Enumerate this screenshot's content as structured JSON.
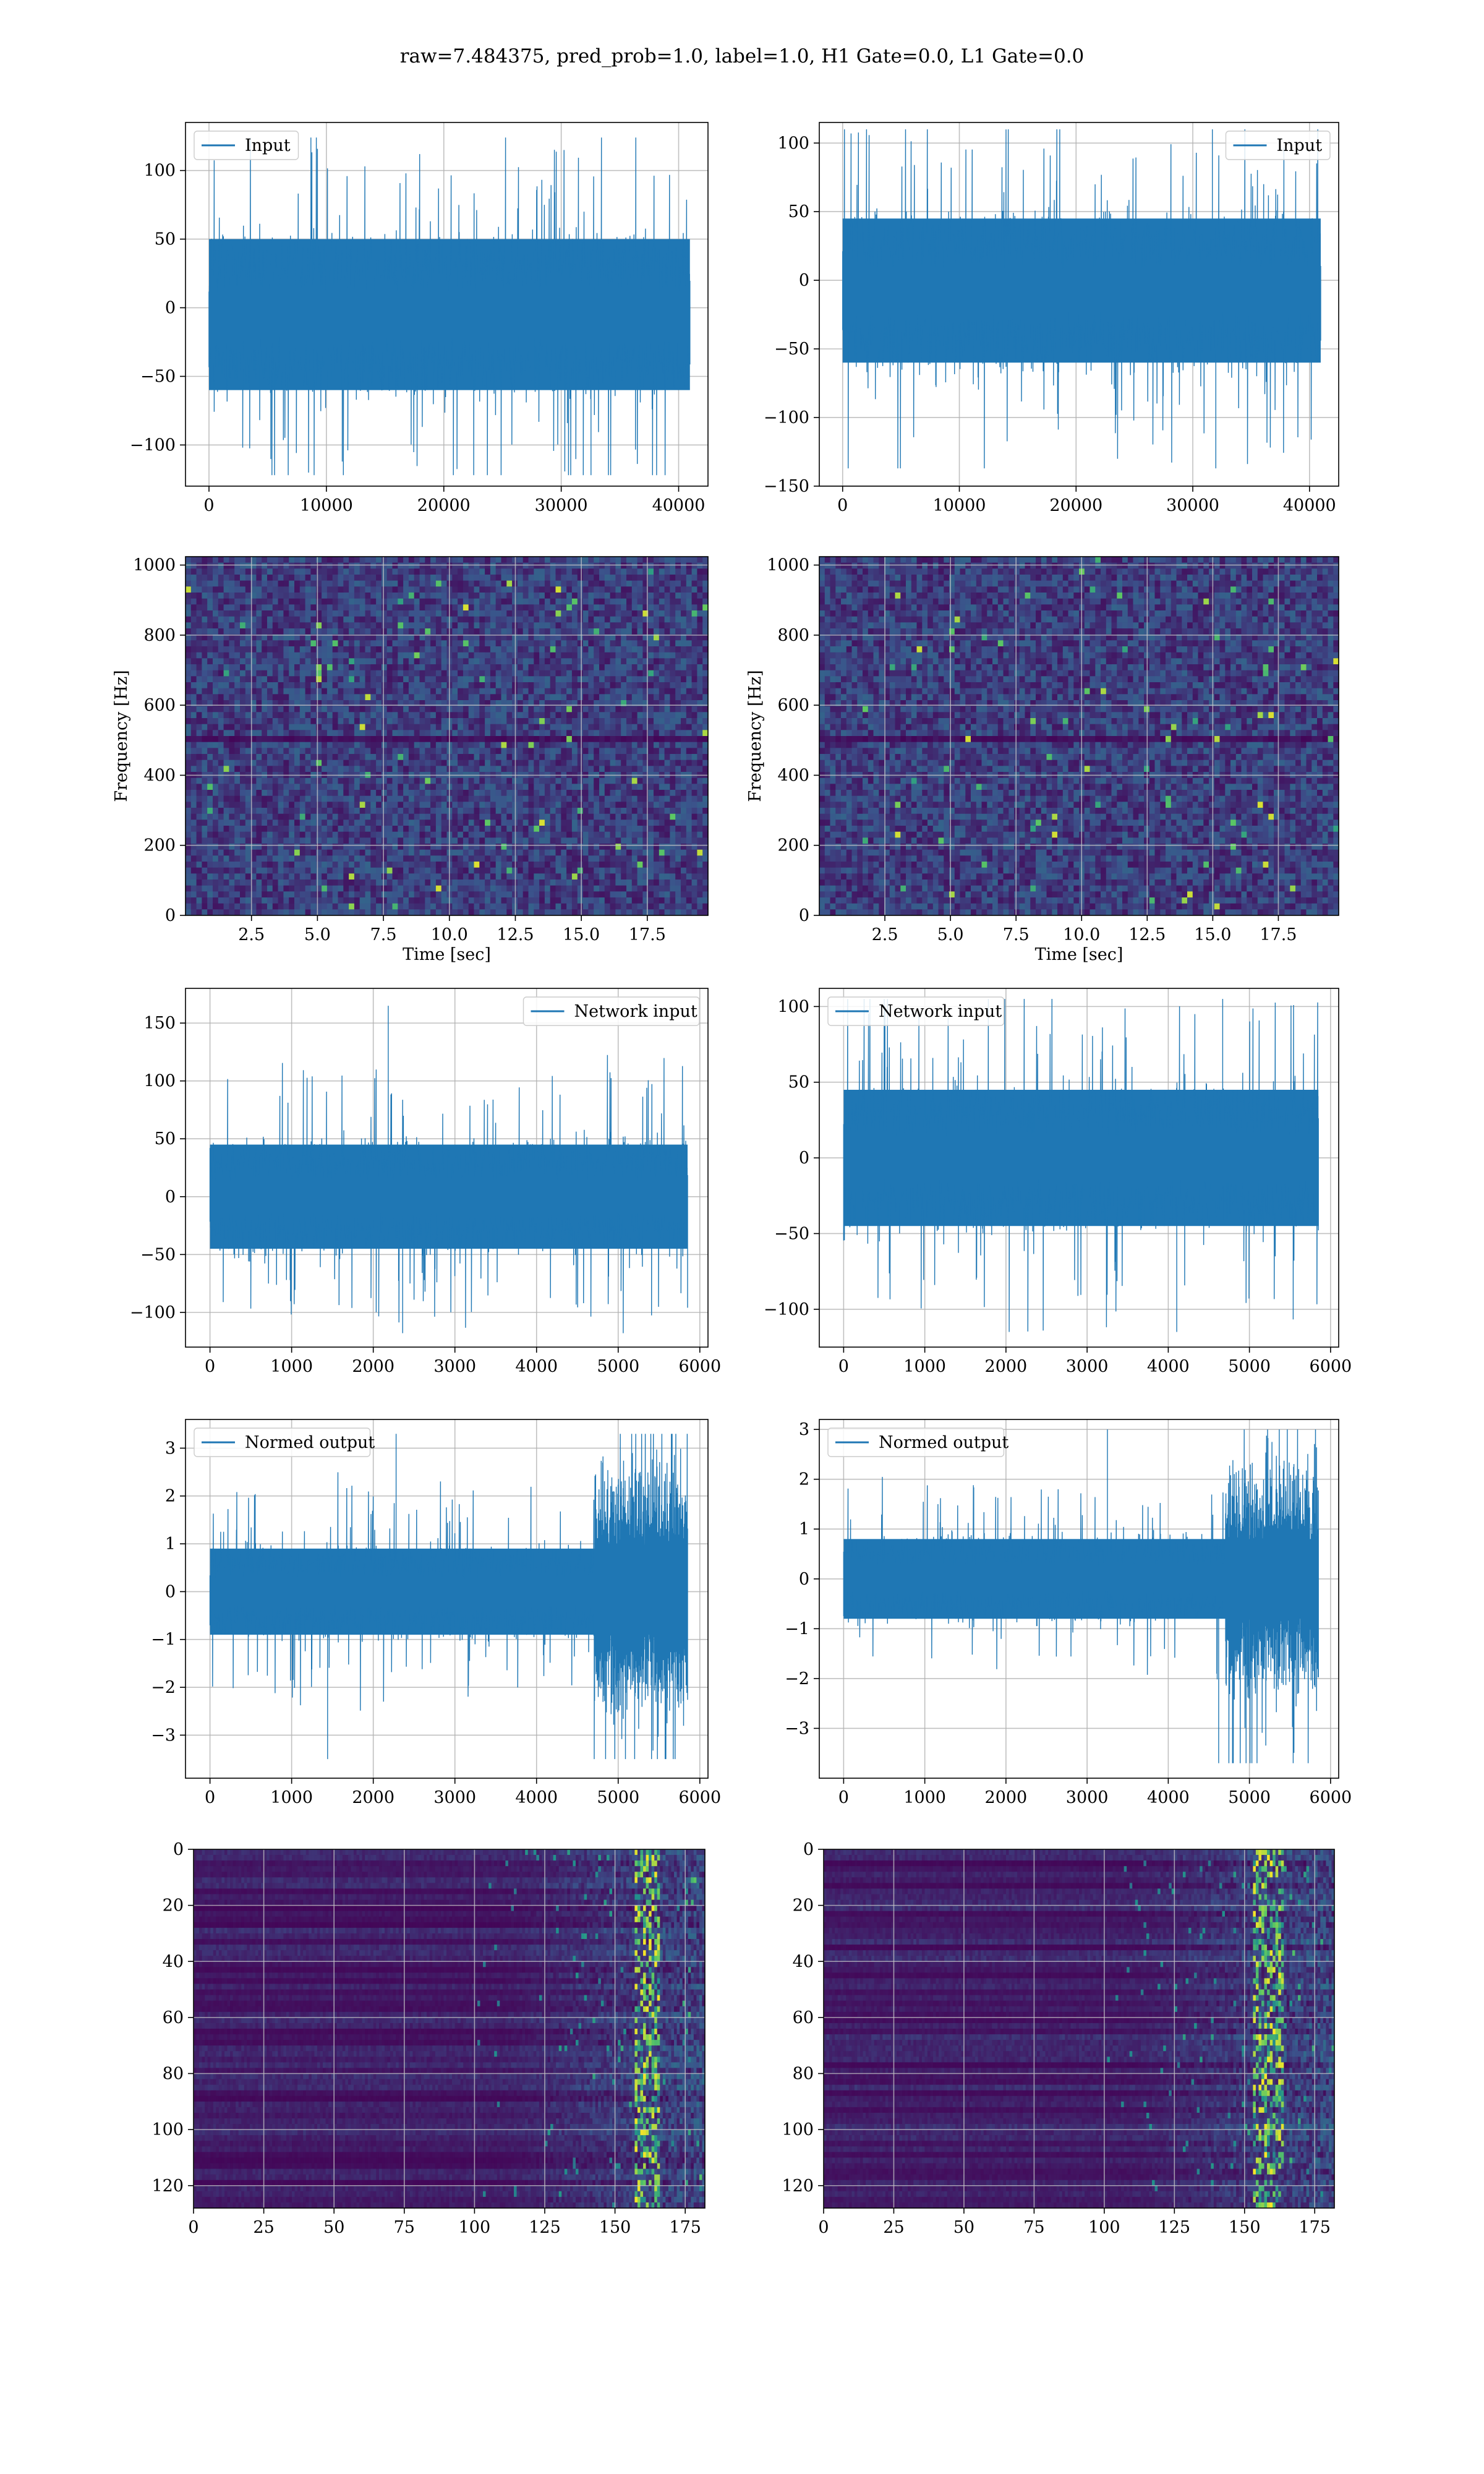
{
  "figure": {
    "suptitle": "raw=7.484375, pred_prob=1.0, label=1.0, H1 Gate=0.0, L1 Gate=0.0",
    "colors": {
      "line": "#1f77b4",
      "grid": "#b0b0b0",
      "spine": "#000000",
      "viridis_low": "#440154",
      "viridis_mid": "#21918c",
      "viridis_high": "#fde725"
    }
  },
  "chart_data": [
    {
      "id": "input-h1",
      "type": "line",
      "legend": "Input",
      "legend_loc": "upper left",
      "xlabel": "",
      "ylabel": "",
      "xlim": [
        -2000,
        42500
      ],
      "ylim": [
        -130,
        135
      ],
      "xticks": [
        0,
        10000,
        20000,
        30000,
        40000
      ],
      "xticklabels": [
        "0",
        "10000",
        "20000",
        "30000",
        "40000"
      ],
      "yticks": [
        -100,
        -50,
        0,
        50,
        100
      ],
      "yticklabels": [
        "−100",
        "−50",
        "0",
        "50",
        "100"
      ],
      "series": [
        {
          "x_range": [
            0,
            40960
          ],
          "core": [
            -60,
            50
          ],
          "peak_min": -122,
          "peak_max": 124,
          "envelope": "stationary"
        }
      ]
    },
    {
      "id": "input-l1",
      "type": "line",
      "legend": "Input",
      "legend_loc": "upper right",
      "xlabel": "",
      "ylabel": "",
      "xlim": [
        -2000,
        42500
      ],
      "ylim": [
        -150,
        115
      ],
      "xticks": [
        0,
        10000,
        20000,
        30000,
        40000
      ],
      "xticklabels": [
        "0",
        "10000",
        "20000",
        "30000",
        "40000"
      ],
      "yticks": [
        -150,
        -100,
        -50,
        0,
        50,
        100
      ],
      "yticklabels": [
        "−150",
        "−100",
        "−50",
        "0",
        "50",
        "100"
      ],
      "series": [
        {
          "x_range": [
            0,
            40960
          ],
          "core": [
            -60,
            45
          ],
          "peak_min": -137,
          "peak_max": 110,
          "envelope": "stationary"
        }
      ]
    },
    {
      "id": "spec-h1",
      "type": "heatmap",
      "kind": "spectrogram",
      "xlabel": "Time [sec]",
      "ylabel": "Frequency [Hz]",
      "xlim": [
        0.0,
        19.8
      ],
      "ylim": [
        0,
        1024
      ],
      "xticks": [
        2.5,
        5.0,
        7.5,
        10.0,
        12.5,
        15.0,
        17.5
      ],
      "xticklabels": [
        "2.5",
        "5.0",
        "7.5",
        "10.0",
        "12.5",
        "15.0",
        "17.5"
      ],
      "yticks": [
        0,
        200,
        400,
        600,
        800,
        1000
      ],
      "yticklabels": [
        "0",
        "200",
        "400",
        "600",
        "800",
        "1000"
      ],
      "dark_band_hz": [
        500,
        512
      ]
    },
    {
      "id": "spec-l1",
      "type": "heatmap",
      "kind": "spectrogram",
      "xlabel": "Time [sec]",
      "ylabel": "Frequency [Hz]",
      "xlim": [
        0.0,
        19.8
      ],
      "ylim": [
        0,
        1024
      ],
      "xticks": [
        2.5,
        5.0,
        7.5,
        10.0,
        12.5,
        15.0,
        17.5
      ],
      "xticklabels": [
        "2.5",
        "5.0",
        "7.5",
        "10.0",
        "12.5",
        "15.0",
        "17.5"
      ],
      "yticks": [
        0,
        200,
        400,
        600,
        800,
        1000
      ],
      "yticklabels": [
        "0",
        "200",
        "400",
        "600",
        "800",
        "1000"
      ],
      "dark_band_hz": [
        500,
        512
      ]
    },
    {
      "id": "netinput-h1",
      "type": "line",
      "legend": "Network input",
      "legend_loc": "upper right",
      "xlabel": "",
      "ylabel": "",
      "xlim": [
        -300,
        6100
      ],
      "ylim": [
        -130,
        180
      ],
      "xticks": [
        0,
        1000,
        2000,
        3000,
        4000,
        5000,
        6000
      ],
      "xticklabels": [
        "0",
        "1000",
        "2000",
        "3000",
        "4000",
        "5000",
        "6000"
      ],
      "yticks": [
        -100,
        -50,
        0,
        50,
        100,
        150
      ],
      "yticklabels": [
        "−100",
        "−50",
        "0",
        "50",
        "100",
        "150"
      ],
      "series": [
        {
          "x_range": [
            0,
            5850
          ],
          "core": [
            -45,
            45
          ],
          "peak_min": -118,
          "peak_max": 165,
          "envelope": "stationary"
        }
      ]
    },
    {
      "id": "netinput-l1",
      "type": "line",
      "legend": "Network input",
      "legend_loc": "upper left",
      "xlabel": "",
      "ylabel": "",
      "xlim": [
        -300,
        6100
      ],
      "ylim": [
        -125,
        112
      ],
      "xticks": [
        0,
        1000,
        2000,
        3000,
        4000,
        5000,
        6000
      ],
      "xticklabels": [
        "0",
        "1000",
        "2000",
        "3000",
        "4000",
        "5000",
        "6000"
      ],
      "yticks": [
        -100,
        -50,
        0,
        50,
        100
      ],
      "yticklabels": [
        "−100",
        "−50",
        "0",
        "50",
        "100"
      ],
      "series": [
        {
          "x_range": [
            0,
            5850
          ],
          "core": [
            -45,
            45
          ],
          "peak_min": -115,
          "peak_max": 105,
          "envelope": "stationary"
        }
      ]
    },
    {
      "id": "normed-h1",
      "type": "line",
      "legend": "Normed output",
      "legend_loc": "upper left",
      "xlabel": "",
      "ylabel": "",
      "xlim": [
        -300,
        6100
      ],
      "ylim": [
        -3.9,
        3.6
      ],
      "xticks": [
        0,
        1000,
        2000,
        3000,
        4000,
        5000,
        6000
      ],
      "xticklabels": [
        "0",
        "1000",
        "2000",
        "3000",
        "4000",
        "5000",
        "6000"
      ],
      "yticks": [
        -3,
        -2,
        -1,
        0,
        1,
        2,
        3
      ],
      "yticklabels": [
        "−3",
        "−2",
        "−1",
        "0",
        "1",
        "2",
        "3"
      ],
      "series": [
        {
          "x_range": [
            0,
            5850
          ],
          "core": [
            -0.9,
            0.9
          ],
          "peak_min": -3.5,
          "peak_max": 3.3,
          "envelope": "burst",
          "burst_start": 4700,
          "burst_scale": 3.2
        }
      ]
    },
    {
      "id": "normed-l1",
      "type": "line",
      "legend": "Normed output",
      "legend_loc": "upper left",
      "xlabel": "",
      "ylabel": "",
      "xlim": [
        -300,
        6100
      ],
      "ylim": [
        -4.0,
        3.2
      ],
      "xticks": [
        0,
        1000,
        2000,
        3000,
        4000,
        5000,
        6000
      ],
      "xticklabels": [
        "0",
        "1000",
        "2000",
        "3000",
        "4000",
        "5000",
        "6000"
      ],
      "yticks": [
        -3,
        -2,
        -1,
        0,
        1,
        2,
        3
      ],
      "yticklabels": [
        "−3",
        "−2",
        "−1",
        "0",
        "1",
        "2",
        "3"
      ],
      "series": [
        {
          "x_range": [
            0,
            5850
          ],
          "core": [
            -0.8,
            0.8
          ],
          "peak_min": -3.7,
          "peak_max": 3.0,
          "envelope": "burst",
          "burst_start": 4700,
          "burst_scale": 3.0
        }
      ]
    },
    {
      "id": "features-h1",
      "type": "heatmap",
      "kind": "feature_map",
      "xlabel": "",
      "ylabel": "",
      "xlim": [
        0,
        182
      ],
      "ylim": [
        128,
        0
      ],
      "xticks": [
        0,
        25,
        50,
        75,
        100,
        125,
        150,
        175
      ],
      "xticklabels": [
        "0",
        "25",
        "50",
        "75",
        "100",
        "125",
        "150",
        "175"
      ],
      "yticks": [
        0,
        20,
        40,
        60,
        80,
        100,
        120
      ],
      "yticklabels": [
        "0",
        "20",
        "40",
        "60",
        "80",
        "100",
        "120"
      ],
      "bright_columns": [
        157,
        165
      ]
    },
    {
      "id": "features-l1",
      "type": "heatmap",
      "kind": "feature_map",
      "xlabel": "",
      "ylabel": "",
      "xlim": [
        0,
        182
      ],
      "ylim": [
        128,
        0
      ],
      "xticks": [
        0,
        25,
        50,
        75,
        100,
        125,
        150,
        175
      ],
      "xticklabels": [
        "0",
        "25",
        "50",
        "75",
        "100",
        "125",
        "150",
        "175"
      ],
      "yticks": [
        0,
        20,
        40,
        60,
        80,
        100,
        120
      ],
      "yticklabels": [
        "0",
        "20",
        "40",
        "60",
        "80",
        "100",
        "120"
      ],
      "bright_columns": [
        153,
        163
      ]
    }
  ]
}
